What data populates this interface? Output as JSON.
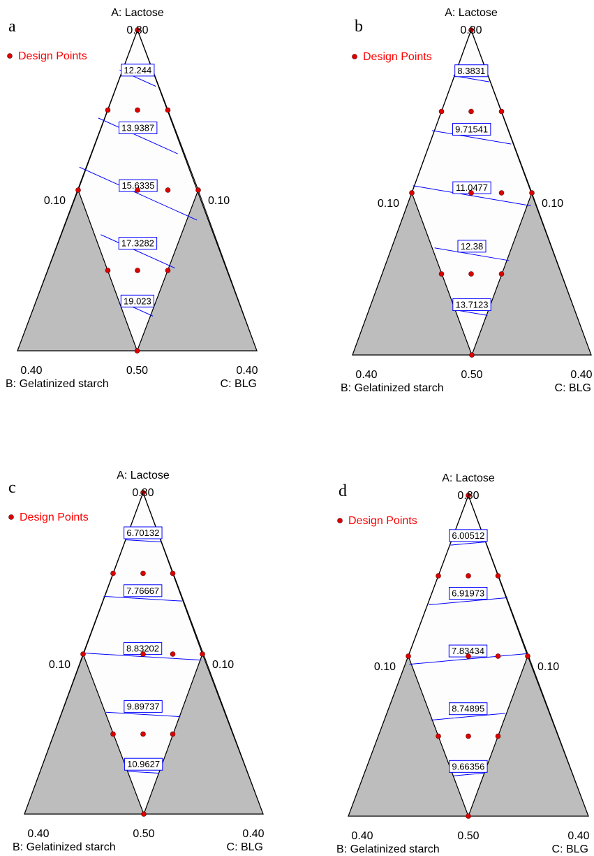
{
  "chart_data": [
    {
      "panel": "a",
      "type": "ternary-contour",
      "axes": {
        "top": {
          "name": "A: Lactose",
          "value": "0.80"
        },
        "left_side": "0.10",
        "right_side": "0.10",
        "bottom_left": {
          "name": "B: Gelatinized starch",
          "value": "0.40"
        },
        "bottom_mid": "0.50",
        "bottom_right": {
          "name": "C: BLG",
          "value": "0.40"
        }
      },
      "legend": "Design Points",
      "contours": [
        "12.244",
        "13.9387",
        "15.6335",
        "17.3282",
        "19.023"
      ]
    },
    {
      "panel": "b",
      "type": "ternary-contour",
      "axes": {
        "top": {
          "name": "A: Lactose",
          "value": "0.80"
        },
        "left_side": "0.10",
        "right_side": "0.10",
        "bottom_left": {
          "name": "B: Gelatinized starch",
          "value": "0.40"
        },
        "bottom_mid": "0.50",
        "bottom_right": {
          "name": "C: BLG",
          "value": "0.40"
        }
      },
      "legend": "Design Points",
      "contours": [
        "8.3831",
        "9.71541",
        "11.0477",
        "12.38",
        "13.7123"
      ]
    },
    {
      "panel": "c",
      "type": "ternary-contour",
      "axes": {
        "top": {
          "name": "A: Lactose",
          "value": "0.80"
        },
        "left_side": "0.10",
        "right_side": "0.10",
        "bottom_left": {
          "name": "B: Gelatinized starch",
          "value": "0.40"
        },
        "bottom_mid": "0.50",
        "bottom_right": {
          "name": "C: BLG",
          "value": "0.40"
        }
      },
      "legend": "Design Points",
      "contours": [
        "6.70132",
        "7.76667",
        "8.83202",
        "9.89737",
        "10.9627"
      ]
    },
    {
      "panel": "d",
      "type": "ternary-contour",
      "axes": {
        "top": {
          "name": "A: Lactose",
          "value": "0.80"
        },
        "left_side": "0.10",
        "right_side": "0.10",
        "bottom_left": {
          "name": "B: Gelatinized starch",
          "value": "0.40"
        },
        "bottom_mid": "0.50",
        "bottom_right": {
          "name": "C: BLG",
          "value": "0.40"
        }
      },
      "legend": "Design Points",
      "contours": [
        "6.00512",
        "6.91973",
        "7.83434",
        "8.74895",
        "9.66356"
      ]
    }
  ]
}
